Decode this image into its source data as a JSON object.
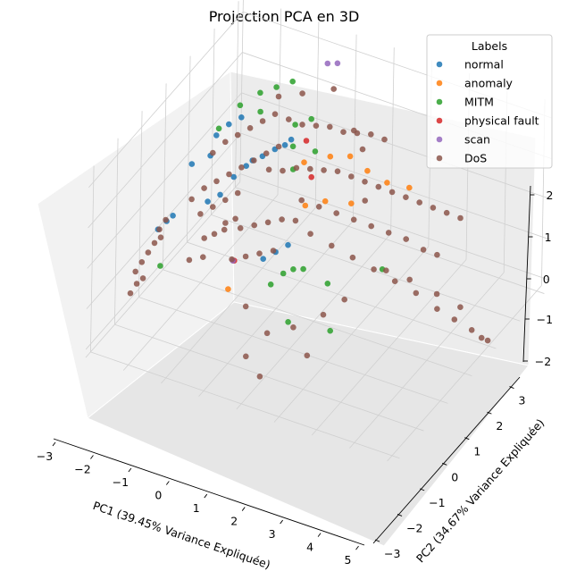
{
  "chart_data": {
    "type": "scatter",
    "projection": "3d",
    "title": "Projection PCA en 3D",
    "xlabel": "PC1 (39.45% Variance Expliquée)",
    "ylabel": "PC2 (34.67% Variance Expliquée)",
    "zlabel": "",
    "xlim": [
      -3,
      5.2
    ],
    "ylim": [
      -3.2,
      3.2
    ],
    "zlim": [
      -2.2,
      2.4
    ],
    "xticks": [
      "−3",
      "−2",
      "−1",
      "0",
      "1",
      "2",
      "3",
      "4",
      "5"
    ],
    "yticks": [
      "−3",
      "−2",
      "−1",
      "0",
      "1",
      "2",
      "3"
    ],
    "zticks": [
      "−2",
      "−1",
      "0",
      "1",
      "2"
    ],
    "grid": true,
    "legend": {
      "title": "Labels",
      "position": "top-right",
      "entries": [
        {
          "name": "normal",
          "color": "#1f77b4"
        },
        {
          "name": "anomaly",
          "color": "#ff7f0e"
        },
        {
          "name": "MITM",
          "color": "#2ca02c"
        },
        {
          "name": "physical fault",
          "color": "#d62728"
        },
        {
          "name": "scan",
          "color": "#9467bd"
        },
        {
          "name": "DoS",
          "color": "#8c564b"
        }
      ]
    },
    "series": [
      {
        "name": "normal",
        "color": "#1f77b4",
        "points": [
          [
            -2.4,
            -1.2,
            -0.2
          ],
          [
            -2.3,
            -1.0,
            -0.1
          ],
          [
            -2.2,
            -0.9,
            0.0
          ],
          [
            -1.3,
            0.2,
            0.5
          ],
          [
            -1.1,
            0.4,
            0.7
          ],
          [
            -1.0,
            0.5,
            0.8
          ],
          [
            -0.8,
            0.6,
            0.9
          ],
          [
            -0.6,
            0.8,
            1.0
          ],
          [
            -1.6,
            -0.4,
            0.2
          ],
          [
            -1.4,
            -0.2,
            0.3
          ],
          [
            -0.4,
            0.9,
            1.1
          ],
          [
            -0.3,
            1.0,
            1.2
          ],
          [
            -1.9,
            0.4,
            1.2
          ],
          [
            -1.7,
            0.6,
            1.4
          ],
          [
            -1.5,
            0.8,
            1.5
          ],
          [
            0.2,
            -0.9,
            -0.3
          ],
          [
            0.4,
            -0.7,
            -0.2
          ],
          [
            0.6,
            -0.5,
            -0.1
          ],
          [
            -2.1,
            -0.3,
            0.9
          ],
          [
            -1.8,
            0.0,
            1.0
          ]
        ]
      },
      {
        "name": "anomaly",
        "color": "#ff7f0e",
        "points": [
          [
            0.3,
            0.6,
            1.1
          ],
          [
            0.8,
            0.9,
            1.2
          ],
          [
            1.2,
            1.1,
            1.2
          ],
          [
            1.6,
            1.2,
            0.9
          ],
          [
            2.0,
            1.4,
            0.6
          ],
          [
            2.4,
            1.7,
            0.4
          ],
          [
            -0.4,
            -1.4,
            -0.9
          ],
          [
            1.0,
            0.4,
            0.5
          ],
          [
            0.6,
            0.2,
            0.4
          ],
          [
            1.5,
            0.7,
            0.4
          ]
        ]
      },
      {
        "name": "MITM",
        "color": "#2ca02c",
        "points": [
          [
            -1.2,
            1.1,
            2.0
          ],
          [
            -0.9,
            1.3,
            2.1
          ],
          [
            -0.6,
            1.5,
            2.2
          ],
          [
            -1.6,
            0.9,
            1.7
          ],
          [
            -1.9,
            0.5,
            1.3
          ],
          [
            -0.2,
            1.0,
            1.6
          ],
          [
            0.1,
            1.2,
            1.7
          ],
          [
            0.4,
            0.9,
            1.2
          ],
          [
            0.8,
            -1.0,
            -0.4
          ],
          [
            1.0,
            -0.9,
            -0.3
          ],
          [
            1.2,
            -0.8,
            -0.3
          ],
          [
            0.6,
            -1.2,
            -0.6
          ],
          [
            2.6,
            0.3,
            -0.6
          ],
          [
            1.6,
            -0.4,
            -0.8
          ],
          [
            2.0,
            -0.9,
            -1.5
          ],
          [
            1.2,
            -1.4,
            -1.2
          ],
          [
            -2.2,
            -1.4,
            -0.9
          ],
          [
            -1.0,
            0.8,
            1.8
          ],
          [
            0.0,
            0.6,
            1.4
          ],
          [
            0.2,
            0.3,
            1.1
          ]
        ]
      },
      {
        "name": "physical fault",
        "color": "#d62728",
        "points": [
          [
            0.1,
            1.0,
            1.3
          ],
          [
            0.5,
            0.6,
            0.8
          ],
          [
            -0.5,
            -1.0,
            -0.5
          ]
        ]
      },
      {
        "name": "scan",
        "color": "#9467bd",
        "points": [
          [
            0.0,
            2.0,
            2.5
          ],
          [
            0.2,
            2.1,
            2.5
          ],
          [
            -0.6,
            -0.9,
            -0.6
          ]
        ]
      },
      {
        "name": "DoS",
        "color": "#8c564b",
        "points": [
          [
            -2.6,
            -1.8,
            -0.9
          ],
          [
            -2.5,
            -1.7,
            -0.7
          ],
          [
            -2.4,
            -1.6,
            -0.5
          ],
          [
            -2.3,
            -1.5,
            -0.3
          ],
          [
            -2.2,
            -1.4,
            -0.2
          ],
          [
            -2.5,
            -1.9,
            -1.1
          ],
          [
            -2.6,
            -2.0,
            -1.3
          ],
          [
            -2.4,
            -1.8,
            -1.0
          ],
          [
            -2.3,
            -1.3,
            -0.1
          ],
          [
            -2.2,
            -1.2,
            0.1
          ],
          [
            -1.9,
            -0.6,
            0.3
          ],
          [
            -1.7,
            -0.4,
            0.5
          ],
          [
            -1.5,
            -0.2,
            0.6
          ],
          [
            -1.3,
            0.0,
            0.7
          ],
          [
            -1.1,
            0.2,
            0.8
          ],
          [
            -0.9,
            0.4,
            0.9
          ],
          [
            -0.7,
            0.6,
            1.0
          ],
          [
            -0.5,
            0.8,
            1.1
          ],
          [
            -1.6,
            -0.7,
            0.1
          ],
          [
            -1.4,
            -0.5,
            0.2
          ],
          [
            -1.2,
            -0.3,
            0.3
          ],
          [
            -1.0,
            -0.1,
            0.4
          ],
          [
            -1.8,
            0.1,
            1.0
          ],
          [
            -1.6,
            0.3,
            1.2
          ],
          [
            -1.4,
            0.5,
            1.3
          ],
          [
            -1.2,
            0.7,
            1.4
          ],
          [
            -1.0,
            0.9,
            1.5
          ],
          [
            -0.8,
            1.1,
            1.6
          ],
          [
            -0.5,
            1.2,
            1.5
          ],
          [
            -0.2,
            1.3,
            1.4
          ],
          [
            0.1,
            1.4,
            1.4
          ],
          [
            0.4,
            1.5,
            1.4
          ],
          [
            0.7,
            1.6,
            1.3
          ],
          [
            1.0,
            1.7,
            1.3
          ],
          [
            1.3,
            1.8,
            1.3
          ],
          [
            1.6,
            1.9,
            1.2
          ],
          [
            -0.5,
            0.4,
            0.8
          ],
          [
            -0.2,
            0.5,
            0.8
          ],
          [
            0.1,
            0.6,
            0.9
          ],
          [
            0.4,
            0.7,
            0.9
          ],
          [
            0.7,
            0.8,
            0.9
          ],
          [
            1.0,
            0.9,
            0.9
          ],
          [
            1.3,
            1.0,
            0.8
          ],
          [
            1.6,
            1.1,
            0.7
          ],
          [
            1.9,
            1.2,
            0.6
          ],
          [
            2.2,
            1.3,
            0.5
          ],
          [
            2.5,
            1.4,
            0.4
          ],
          [
            2.8,
            1.5,
            0.3
          ],
          [
            3.1,
            1.6,
            0.2
          ],
          [
            3.4,
            1.7,
            0.1
          ],
          [
            3.7,
            1.8,
            0.0
          ],
          [
            0.5,
            0.2,
            0.5
          ],
          [
            0.9,
            0.3,
            0.4
          ],
          [
            1.3,
            0.4,
            0.3
          ],
          [
            1.7,
            0.5,
            0.2
          ],
          [
            2.1,
            0.6,
            0.1
          ],
          [
            2.5,
            0.7,
            0.0
          ],
          [
            2.9,
            0.8,
            -0.1
          ],
          [
            3.3,
            0.9,
            -0.3
          ],
          [
            3.6,
            1.0,
            -0.4
          ],
          [
            1.0,
            -0.2,
            0.1
          ],
          [
            1.5,
            -0.1,
            -0.1
          ],
          [
            2.0,
            0.0,
            -0.3
          ],
          [
            2.5,
            0.1,
            -0.5
          ],
          [
            3.0,
            0.2,
            -0.7
          ],
          [
            3.5,
            0.3,
            -0.9
          ],
          [
            4.0,
            0.4,
            -1.2
          ],
          [
            4.4,
            0.5,
            -1.4
          ],
          [
            4.8,
            0.6,
            -1.6
          ],
          [
            5.0,
            0.7,
            -1.8
          ],
          [
            5.1,
            0.8,
            -1.9
          ],
          [
            2.7,
            0.3,
            -0.6
          ],
          [
            3.2,
            0.5,
            -0.8
          ],
          [
            3.8,
            0.7,
            -1.1
          ],
          [
            4.3,
            0.9,
            -1.4
          ],
          [
            -0.6,
            -0.6,
            0.0
          ],
          [
            -0.3,
            -0.5,
            0.1
          ],
          [
            0.0,
            -0.4,
            0.2
          ],
          [
            0.3,
            -0.3,
            0.3
          ],
          [
            0.6,
            -0.2,
            0.3
          ],
          [
            -1.0,
            -0.6,
            0.0
          ],
          [
            -0.8,
            -0.5,
            0.1
          ],
          [
            -0.5,
            -1.1,
            -0.4
          ],
          [
            -0.2,
            -1.0,
            -0.3
          ],
          [
            0.1,
            -0.9,
            -0.2
          ],
          [
            0.4,
            -0.8,
            -0.1
          ],
          [
            -1.5,
            -1.3,
            -0.6
          ],
          [
            -1.2,
            -1.2,
            -0.5
          ],
          [
            0.2,
            -1.6,
            -1.0
          ],
          [
            0.9,
            -1.8,
            -1.3
          ],
          [
            1.4,
            -1.5,
            -1.2
          ],
          [
            1.9,
            -1.7,
            -1.6
          ],
          [
            0.6,
            -2.2,
            -1.7
          ],
          [
            1.1,
            -2.4,
            -1.9
          ],
          [
            2.0,
            -1.2,
            -0.9
          ],
          [
            2.3,
            -0.8,
            -0.7
          ],
          [
            0.3,
            1.8,
            2.1
          ],
          [
            -0.4,
            1.6,
            1.9
          ],
          [
            -0.9,
            1.4,
            1.8
          ],
          [
            1.1,
            1.4,
            1.6
          ],
          [
            1.4,
            1.3,
            1.3
          ],
          [
            -1.3,
            -1.0,
            -0.2
          ],
          [
            -1.1,
            -0.9,
            -0.1
          ],
          [
            -0.9,
            -0.8,
            0.0
          ],
          [
            1.8,
            0.8,
            0.5
          ]
        ]
      }
    ]
  }
}
